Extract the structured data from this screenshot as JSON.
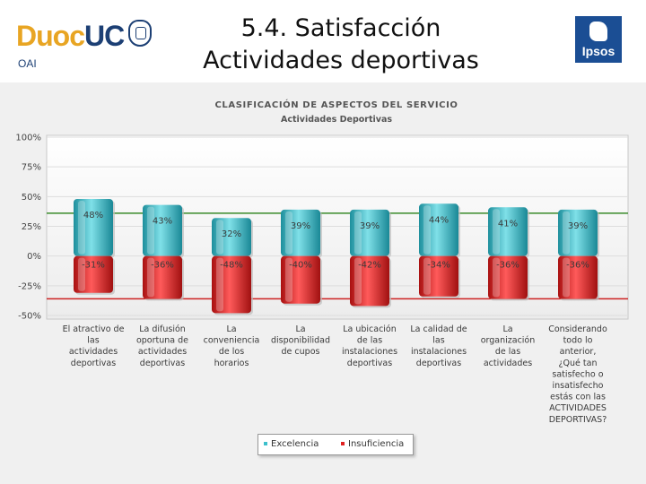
{
  "header": {
    "logo_text_a": "Duoc",
    "logo_text_b": "UC",
    "org": "OAI",
    "title": "5.4. Satisfacción Actividades deportivas",
    "partner_logo": "Ipsos",
    "accent": "#e8a523",
    "brand": "#1c3f74"
  },
  "chart_data": {
    "type": "bar",
    "title": "CLASIFICACIÓN DE ASPECTOS DEL SERVICIO",
    "subtitle": "Actividades Deportivas",
    "ylim": [
      -50,
      100
    ],
    "yticks": [
      "100%",
      "75%",
      "50%",
      "25%",
      "0%",
      "-25%",
      "-50%"
    ],
    "ytick_values": [
      100,
      75,
      50,
      25,
      0,
      -25,
      -50
    ],
    "reference_lines": [
      {
        "value": 36,
        "color": "#3a8a2a"
      },
      {
        "value": -36,
        "color": "#cc2222"
      }
    ],
    "categories": [
      "El atractivo de las actividades deportivas",
      "La difusión oportuna de actividades deportivas",
      "La conveniencia de los horarios",
      "La disponibilidad de cupos",
      "La ubicación de las instalaciones deportivas",
      "La calidad de las instalaciones deportivas",
      "La organización de las actividades",
      "Considerando todo lo anterior, ¿Qué tan satisfecho o insatisfecho estás con las ACTIVIDADES DEPORTIVAS?"
    ],
    "category_lines": [
      [
        "El atractivo de",
        "las",
        "actividades",
        "deportivas"
      ],
      [
        "La difusión",
        "oportuna de",
        "actividades",
        "deportivas"
      ],
      [
        "La",
        "conveniencia",
        "de los",
        "horarios"
      ],
      [
        "La",
        "disponibilidad",
        "de cupos"
      ],
      [
        "La ubicación",
        "de las",
        "instalaciones",
        "deportivas"
      ],
      [
        "La calidad de",
        "las",
        "instalaciones",
        "deportivas"
      ],
      [
        "La",
        "organización",
        "de las",
        "actividades"
      ],
      [
        "Considerando",
        "todo lo",
        "anterior,",
        "¿Qué tan",
        "satisfecho o",
        "insatisfecho",
        "estás con las",
        "ACTIVIDADES",
        "DEPORTIVAS?"
      ]
    ],
    "series": [
      {
        "name": "Excelencia",
        "color": "#3cc0cc",
        "values": [
          48,
          43,
          32,
          39,
          39,
          44,
          41,
          39
        ],
        "labels": [
          "48%",
          "43%",
          "32%",
          "39%",
          "39%",
          "44%",
          "41%",
          "39%"
        ]
      },
      {
        "name": "Insuficiencia",
        "color": "#e02020",
        "values": [
          -31,
          -36,
          -48,
          -40,
          -42,
          -34,
          -36,
          -36
        ],
        "labels": [
          "-31%",
          "-36%",
          "-48%",
          "-40%",
          "-42%",
          "-34%",
          "-36%",
          "-36%"
        ]
      }
    ],
    "legend_position": "bottom-center"
  }
}
